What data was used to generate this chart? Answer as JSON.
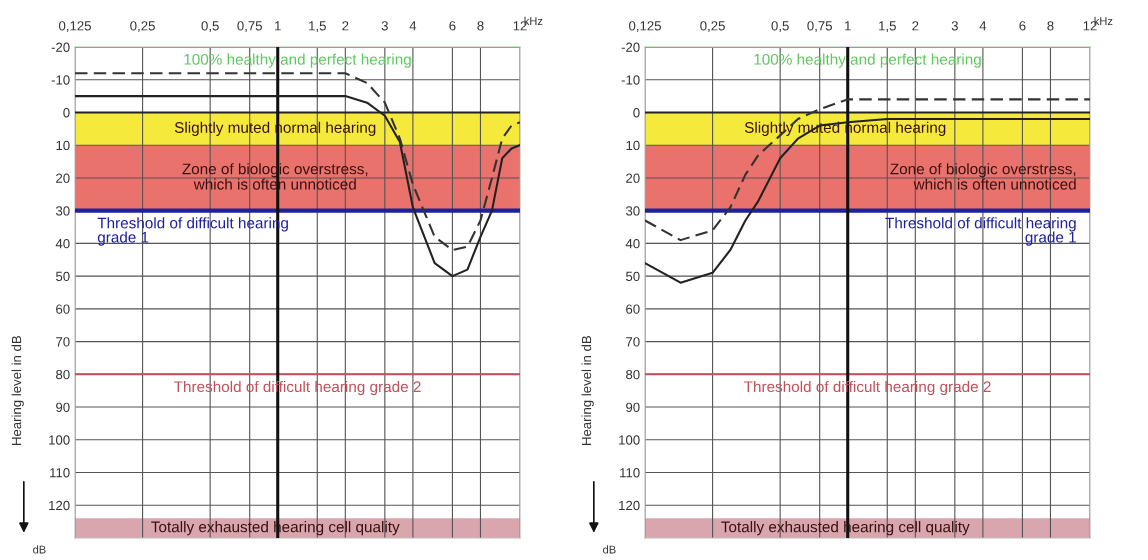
{
  "chart_data": [
    {
      "type": "line",
      "xlabel": "kHz",
      "ylabel": "Hearing level in dB",
      "annotations": [
        "dB"
      ],
      "xlim": [
        0.125,
        12
      ],
      "log": "x",
      "xticks": [
        {
          "value": 0.125,
          "label": "0,125"
        },
        {
          "value": 0.25,
          "label": "0,25"
        },
        {
          "value": 0.5,
          "label": "0,5"
        },
        {
          "value": 0.75,
          "label": "0,75"
        },
        1,
        {
          "value": 1.5,
          "label": "1,5"
        },
        2,
        3,
        4,
        6,
        8,
        12
      ],
      "ylim": [
        130,
        -20
      ],
      "yticks": [
        -20,
        -10,
        0,
        10,
        20,
        30,
        40,
        50,
        60,
        70,
        80,
        90,
        100,
        110,
        120
      ],
      "grid": true,
      "series": [
        {
          "color": "#222222",
          "line_style": "solid",
          "x": [
            0.125,
            0.25,
            0.5,
            1,
            1.5,
            2,
            2.5,
            3,
            3.5,
            4,
            5,
            6,
            7,
            8,
            9,
            10,
            11,
            12
          ],
          "values": [
            -5,
            -5,
            -5,
            -5,
            -5,
            -5,
            -3,
            1,
            9,
            29,
            46,
            50,
            48,
            38,
            30,
            14,
            11,
            10
          ]
        },
        {
          "color": "#333333",
          "line_style": "dashed",
          "x": [
            0.125,
            0.25,
            0.5,
            1,
            1.5,
            2,
            2.5,
            3,
            3.5,
            4,
            5,
            6,
            7,
            8,
            9,
            10,
            11,
            12
          ],
          "values": [
            -12,
            -12,
            -12,
            -12,
            -12,
            -12,
            -9,
            -3,
            8,
            22,
            38,
            42,
            41,
            33,
            20,
            8,
            4,
            3
          ]
        }
      ],
      "bands": [
        {
          "axis": "y",
          "from": 0,
          "to": 10,
          "label": "Slightly muted normal hearing",
          "color": "#f5ea3c"
        },
        {
          "axis": "y",
          "from": 10,
          "to": 30,
          "label": "Zone of biologic overstress,\nwhich is often unnoticed",
          "color": "#e9736c"
        },
        {
          "axis": "y",
          "from": 124,
          "to": 130,
          "label": "Totally exhausted hearing cell quality",
          "color": "#d9a6ad"
        }
      ],
      "ref_lines": [
        {
          "axis": "y",
          "value": -20,
          "label": "100% healthy and perfect hearing",
          "color": "#5cc85c"
        },
        {
          "axis": "y",
          "value": 0,
          "color": "#222222"
        },
        {
          "axis": "y",
          "value": 30,
          "label": "Threshold of difficult hearing\ngrade 1",
          "color": "#1f1fa0"
        },
        {
          "axis": "y",
          "value": 80,
          "label": "Threshold of difficult hearing grade 2",
          "color": "#c0505a"
        },
        {
          "axis": "x",
          "value": 1,
          "color": "#111111"
        }
      ]
    },
    {
      "type": "line",
      "xlabel": "kHz",
      "ylabel": "Hearing level in dB",
      "annotations": [
        "dB"
      ],
      "xlim": [
        0.125,
        12
      ],
      "log": "x",
      "xticks": [
        {
          "value": 0.125,
          "label": "0,125"
        },
        {
          "value": 0.25,
          "label": "0,25"
        },
        {
          "value": 0.5,
          "label": "0,5"
        },
        {
          "value": 0.75,
          "label": "0,75"
        },
        1,
        {
          "value": 1.5,
          "label": "1,5"
        },
        2,
        3,
        4,
        6,
        8,
        12
      ],
      "ylim": [
        130,
        -20
      ],
      "yticks": [
        -20,
        -10,
        0,
        10,
        20,
        30,
        40,
        50,
        60,
        70,
        80,
        90,
        100,
        110,
        120
      ],
      "grid": true,
      "series": [
        {
          "color": "#222222",
          "line_style": "solid",
          "x": [
            0.125,
            0.15,
            0.18,
            0.25,
            0.3,
            0.35,
            0.4,
            0.5,
            0.6,
            0.75,
            1,
            1.5,
            2,
            4,
            8,
            12
          ],
          "values": [
            46,
            49,
            52,
            49,
            42,
            33,
            27,
            14,
            8,
            4,
            3,
            2,
            2,
            2,
            2,
            2
          ]
        },
        {
          "color": "#333333",
          "line_style": "dashed",
          "x": [
            0.125,
            0.18,
            0.25,
            0.3,
            0.35,
            0.4,
            0.5,
            0.6,
            0.75,
            1,
            1.5,
            2,
            4,
            8,
            12
          ],
          "values": [
            33,
            39,
            36,
            29,
            19,
            13,
            7,
            2,
            -1,
            -4,
            -4,
            -4,
            -4,
            -4,
            -4
          ]
        }
      ],
      "bands": [
        {
          "axis": "y",
          "from": 0,
          "to": 10,
          "label": "Slightly muted normal hearing",
          "color": "#f5ea3c"
        },
        {
          "axis": "y",
          "from": 10,
          "to": 30,
          "label": "Zone of biologic overstress,\nwhich is often unnoticed",
          "color": "#e9736c"
        },
        {
          "axis": "y",
          "from": 124,
          "to": 130,
          "label": "Totally exhausted hearing cell quality",
          "color": "#d9a6ad"
        }
      ],
      "ref_lines": [
        {
          "axis": "y",
          "value": -20,
          "label": "100% healthy and perfect hearing",
          "color": "#5cc85c"
        },
        {
          "axis": "y",
          "value": 0,
          "color": "#222222"
        },
        {
          "axis": "y",
          "value": 30,
          "label": "Threshold of difficult hearing\ngrade 1",
          "color": "#1f1fa0"
        },
        {
          "axis": "y",
          "value": 80,
          "label": "Threshold of difficult hearing grade 2",
          "color": "#c0505a"
        },
        {
          "axis": "x",
          "value": 1,
          "color": "#111111"
        }
      ]
    }
  ]
}
